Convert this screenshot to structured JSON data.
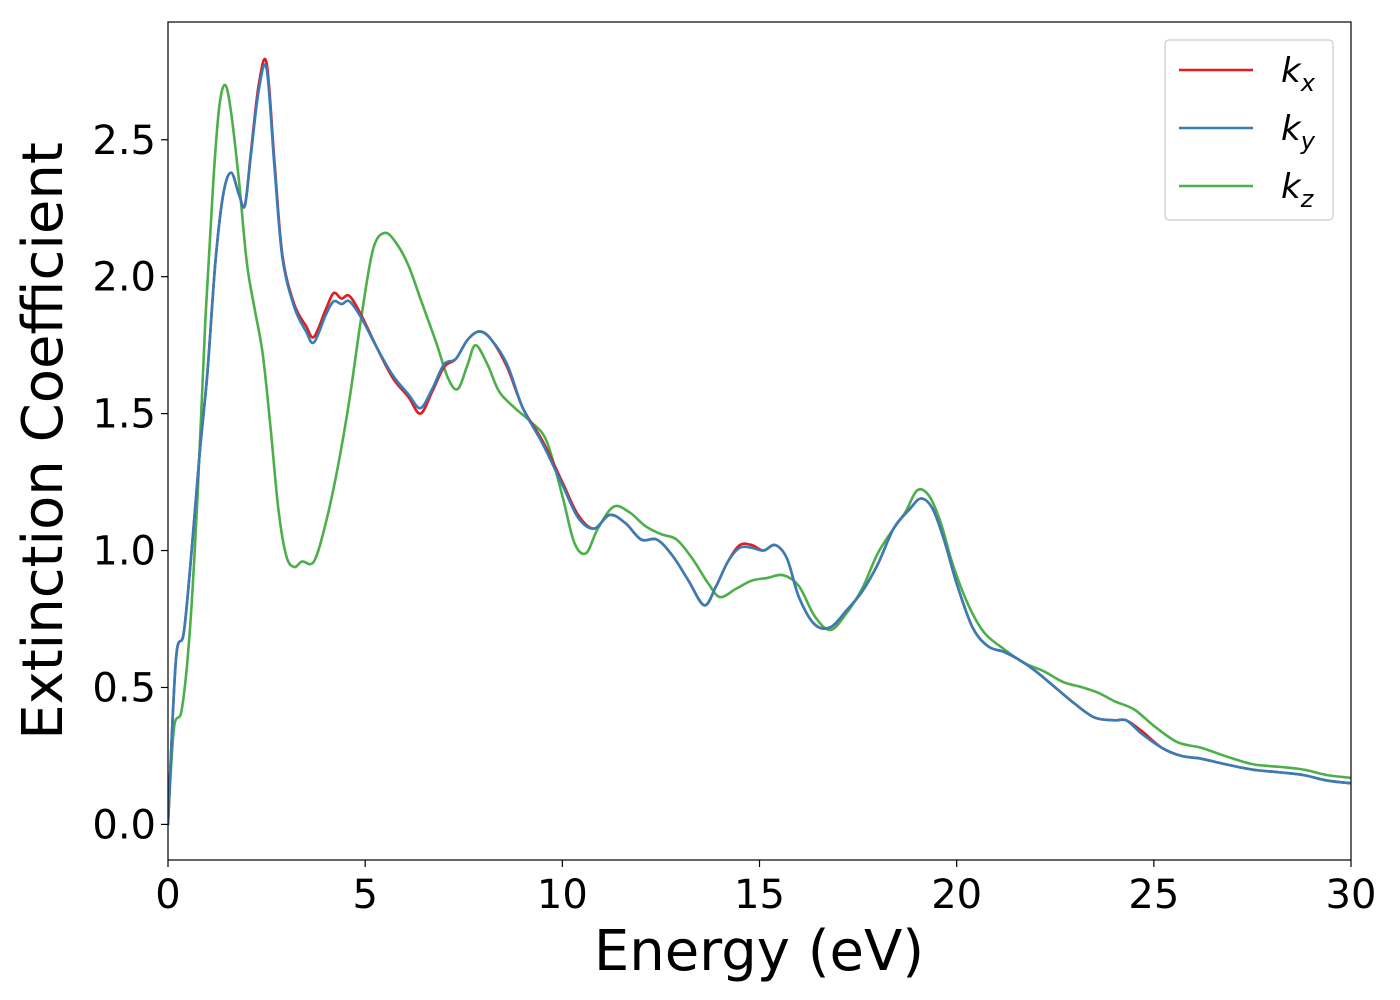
{
  "chart_data": {
    "type": "line",
    "title": "",
    "xlabel": "Energy (eV)",
    "ylabel": "Extinction Coefficient",
    "xlim": [
      0,
      30
    ],
    "ylim": [
      -0.13,
      2.93
    ],
    "xticks": [
      0,
      5,
      10,
      15,
      20,
      25,
      30
    ],
    "xtick_labels": [
      "0",
      "5",
      "10",
      "15",
      "20",
      "25",
      "30"
    ],
    "yticks": [
      0.0,
      0.5,
      1.0,
      1.5,
      2.0,
      2.5
    ],
    "ytick_labels": [
      "0.0",
      "0.5",
      "1.0",
      "1.5",
      "2.0",
      "2.5"
    ],
    "grid": false,
    "legend_position": "top-right",
    "series": [
      {
        "name": "k_x",
        "legend_main": "k",
        "legend_sub": "x",
        "color": "#e41a1c",
        "x": [
          0,
          0.2,
          0.4,
          0.6,
          0.8,
          1.0,
          1.2,
          1.4,
          1.6,
          1.8,
          1.95,
          2.1,
          2.3,
          2.5,
          2.7,
          2.9,
          3.2,
          3.5,
          3.7,
          4.0,
          4.2,
          4.4,
          4.6,
          4.9,
          5.3,
          5.7,
          6.1,
          6.4,
          6.7,
          7.0,
          7.3,
          7.6,
          7.9,
          8.2,
          8.6,
          9.0,
          9.5,
          10.0,
          10.4,
          10.8,
          11.2,
          11.6,
          12.0,
          12.4,
          12.8,
          13.2,
          13.6,
          13.9,
          14.2,
          14.5,
          14.8,
          15.1,
          15.4,
          15.7,
          16.0,
          16.4,
          16.8,
          17.2,
          17.6,
          18.0,
          18.4,
          18.8,
          19.1,
          19.4,
          19.7,
          20.0,
          20.4,
          20.8,
          21.2,
          21.6,
          22.0,
          22.5,
          23.0,
          23.5,
          24.0,
          24.3,
          24.7,
          25.2,
          25.7,
          26.2,
          26.8,
          27.5,
          28.2,
          28.8,
          29.4,
          30.0
        ],
        "values": [
          0.0,
          0.6,
          0.7,
          1.0,
          1.35,
          1.65,
          2.05,
          2.3,
          2.38,
          2.3,
          2.26,
          2.45,
          2.7,
          2.78,
          2.42,
          2.08,
          1.9,
          1.82,
          1.78,
          1.88,
          1.94,
          1.92,
          1.93,
          1.86,
          1.74,
          1.63,
          1.56,
          1.5,
          1.58,
          1.67,
          1.7,
          1.77,
          1.8,
          1.77,
          1.67,
          1.52,
          1.4,
          1.25,
          1.13,
          1.08,
          1.13,
          1.1,
          1.04,
          1.04,
          0.98,
          0.89,
          0.8,
          0.87,
          0.96,
          1.02,
          1.02,
          1.0,
          1.02,
          0.97,
          0.83,
          0.73,
          0.72,
          0.78,
          0.85,
          0.95,
          1.08,
          1.15,
          1.19,
          1.15,
          1.03,
          0.88,
          0.72,
          0.65,
          0.63,
          0.6,
          0.56,
          0.5,
          0.44,
          0.39,
          0.38,
          0.38,
          0.34,
          0.28,
          0.25,
          0.24,
          0.22,
          0.2,
          0.19,
          0.18,
          0.16,
          0.15
        ]
      },
      {
        "name": "k_y",
        "legend_main": "k",
        "legend_sub": "y",
        "color": "#377eb8",
        "x": [
          0,
          0.2,
          0.4,
          0.6,
          0.8,
          1.0,
          1.2,
          1.4,
          1.6,
          1.8,
          1.95,
          2.1,
          2.3,
          2.5,
          2.7,
          2.9,
          3.2,
          3.5,
          3.7,
          4.0,
          4.2,
          4.4,
          4.6,
          4.9,
          5.3,
          5.7,
          6.1,
          6.4,
          6.7,
          7.0,
          7.3,
          7.6,
          7.9,
          8.2,
          8.6,
          9.0,
          9.5,
          10.0,
          10.4,
          10.8,
          11.2,
          11.6,
          12.0,
          12.4,
          12.8,
          13.2,
          13.6,
          13.9,
          14.2,
          14.5,
          14.8,
          15.1,
          15.4,
          15.7,
          16.0,
          16.4,
          16.8,
          17.2,
          17.6,
          18.0,
          18.4,
          18.8,
          19.1,
          19.4,
          19.7,
          20.0,
          20.4,
          20.8,
          21.2,
          21.6,
          22.0,
          22.5,
          23.0,
          23.5,
          24.0,
          24.3,
          24.7,
          25.2,
          25.7,
          26.2,
          26.8,
          27.5,
          28.2,
          28.8,
          29.4,
          30.0
        ],
        "values": [
          0.0,
          0.6,
          0.7,
          1.0,
          1.35,
          1.65,
          2.05,
          2.3,
          2.38,
          2.3,
          2.26,
          2.44,
          2.68,
          2.76,
          2.4,
          2.07,
          1.89,
          1.8,
          1.76,
          1.86,
          1.91,
          1.9,
          1.91,
          1.85,
          1.74,
          1.64,
          1.57,
          1.52,
          1.59,
          1.68,
          1.7,
          1.77,
          1.8,
          1.77,
          1.68,
          1.52,
          1.39,
          1.24,
          1.12,
          1.08,
          1.13,
          1.1,
          1.04,
          1.04,
          0.98,
          0.89,
          0.8,
          0.87,
          0.96,
          1.01,
          1.01,
          1.0,
          1.02,
          0.97,
          0.83,
          0.73,
          0.72,
          0.78,
          0.85,
          0.95,
          1.08,
          1.15,
          1.19,
          1.15,
          1.03,
          0.88,
          0.72,
          0.65,
          0.63,
          0.6,
          0.56,
          0.5,
          0.44,
          0.39,
          0.38,
          0.38,
          0.33,
          0.28,
          0.25,
          0.24,
          0.22,
          0.2,
          0.19,
          0.18,
          0.16,
          0.15
        ]
      },
      {
        "name": "k_z",
        "legend_main": "k",
        "legend_sub": "z",
        "color": "#4daf4a",
        "x": [
          0,
          0.15,
          0.35,
          0.55,
          0.75,
          0.95,
          1.15,
          1.3,
          1.45,
          1.6,
          1.8,
          2.0,
          2.2,
          2.4,
          2.6,
          2.8,
          3.0,
          3.2,
          3.4,
          3.7,
          4.0,
          4.3,
          4.6,
          4.9,
          5.2,
          5.5,
          5.8,
          6.1,
          6.4,
          6.8,
          7.1,
          7.35,
          7.6,
          7.8,
          8.1,
          8.4,
          8.8,
          9.2,
          9.6,
          10.0,
          10.3,
          10.6,
          10.9,
          11.3,
          11.7,
          12.1,
          12.5,
          12.9,
          13.3,
          13.7,
          14.0,
          14.4,
          14.8,
          15.2,
          15.6,
          16.0,
          16.4,
          16.8,
          17.2,
          17.6,
          18.0,
          18.4,
          18.7,
          19.0,
          19.3,
          19.6,
          19.9,
          20.3,
          20.7,
          21.2,
          21.7,
          22.2,
          22.7,
          23.2,
          23.6,
          24.0,
          24.5,
          25.0,
          25.6,
          26.2,
          26.8,
          27.5,
          28.2,
          28.8,
          29.4,
          30.0
        ],
        "values": [
          0.0,
          0.35,
          0.42,
          0.7,
          1.2,
          1.85,
          2.35,
          2.62,
          2.7,
          2.6,
          2.35,
          2.05,
          1.88,
          1.72,
          1.45,
          1.15,
          0.98,
          0.94,
          0.96,
          0.96,
          1.1,
          1.3,
          1.55,
          1.85,
          2.1,
          2.16,
          2.12,
          2.04,
          1.92,
          1.76,
          1.63,
          1.59,
          1.68,
          1.75,
          1.68,
          1.58,
          1.52,
          1.47,
          1.4,
          1.2,
          1.03,
          0.99,
          1.08,
          1.16,
          1.14,
          1.09,
          1.06,
          1.04,
          0.97,
          0.88,
          0.83,
          0.86,
          0.89,
          0.9,
          0.91,
          0.87,
          0.76,
          0.71,
          0.77,
          0.86,
          0.99,
          1.08,
          1.14,
          1.22,
          1.2,
          1.1,
          0.95,
          0.8,
          0.7,
          0.64,
          0.59,
          0.56,
          0.52,
          0.5,
          0.48,
          0.45,
          0.42,
          0.36,
          0.3,
          0.28,
          0.25,
          0.22,
          0.21,
          0.2,
          0.18,
          0.17
        ]
      }
    ]
  }
}
